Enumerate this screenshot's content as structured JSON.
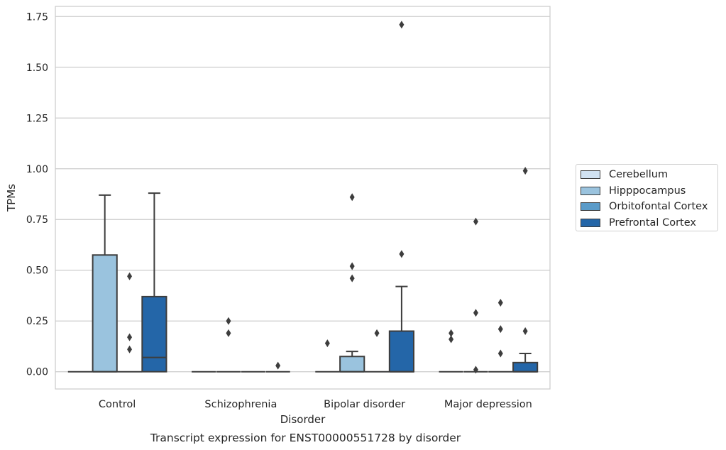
{
  "chart_data": {
    "type": "box",
    "title": "Transcript expression for ENST00000551728 by disorder",
    "xlabel": "Disorder",
    "ylabel": "TPMs",
    "ylim": [
      -0.085,
      1.8
    ],
    "yticks": [
      "0.00",
      "0.25",
      "0.50",
      "0.75",
      "1.00",
      "1.25",
      "1.50",
      "1.75"
    ],
    "grid": true,
    "legend_position": "right",
    "categories": [
      "Control",
      "Schizophrenia",
      "Bipolar disorder",
      "Major depression"
    ],
    "series": [
      {
        "name": "Cerebellum",
        "color": "#d1e2f2",
        "boxes": [
          {
            "min": 0,
            "q1": 0,
            "median": 0,
            "q3": 0,
            "max": 0,
            "outliers": []
          },
          {
            "min": 0,
            "q1": 0,
            "median": 0,
            "q3": 0,
            "max": 0,
            "outliers": []
          },
          {
            "min": 0,
            "q1": 0,
            "median": 0,
            "q3": 0,
            "max": 0,
            "outliers": [
              0.14
            ]
          },
          {
            "min": 0,
            "q1": 0,
            "median": 0,
            "q3": 0,
            "max": 0,
            "outliers": [
              0.19,
              0.16
            ]
          }
        ]
      },
      {
        "name": "Hipppocampus",
        "color": "#9ac3de",
        "boxes": [
          {
            "min": 0,
            "q1": 0,
            "median": 0,
            "q3": 0.575,
            "max": 0.87,
            "outliers": []
          },
          {
            "min": 0,
            "q1": 0,
            "median": 0,
            "q3": 0,
            "max": 0,
            "outliers": [
              0.25,
              0.19
            ]
          },
          {
            "min": 0,
            "q1": 0,
            "median": 0,
            "q3": 0.075,
            "max": 0.1,
            "outliers": [
              0.86,
              0.52,
              0.46
            ]
          },
          {
            "min": 0,
            "q1": 0,
            "median": 0,
            "q3": 0,
            "max": 0,
            "outliers": [
              0.74,
              0.29,
              0.01
            ]
          }
        ]
      },
      {
        "name": "Orbitofontal Cortex",
        "color": "#5a9bc9",
        "boxes": [
          {
            "min": 0,
            "q1": 0,
            "median": 0,
            "q3": 0,
            "max": 0,
            "outliers": [
              0.47,
              0.17,
              0.11
            ]
          },
          {
            "min": 0,
            "q1": 0,
            "median": 0,
            "q3": 0,
            "max": 0,
            "outliers": []
          },
          {
            "min": 0,
            "q1": 0,
            "median": 0,
            "q3": 0,
            "max": 0,
            "outliers": [
              0.19
            ]
          },
          {
            "min": 0,
            "q1": 0,
            "median": 0,
            "q3": 0,
            "max": 0,
            "outliers": [
              0.34,
              0.21,
              0.09
            ]
          }
        ]
      },
      {
        "name": "Prefrontal Cortex",
        "color": "#2466a8",
        "boxes": [
          {
            "min": 0,
            "q1": 0,
            "median": 0.07,
            "q3": 0.37,
            "max": 0.88,
            "outliers": []
          },
          {
            "min": 0,
            "q1": 0,
            "median": 0,
            "q3": 0,
            "max": 0,
            "outliers": [
              0.03
            ]
          },
          {
            "min": 0,
            "q1": 0,
            "median": 0,
            "q3": 0.2,
            "max": 0.42,
            "outliers": [
              1.71,
              0.58
            ]
          },
          {
            "min": 0,
            "q1": 0,
            "median": 0,
            "q3": 0.045,
            "max": 0.09,
            "outliers": [
              0.99,
              0.2
            ]
          }
        ]
      }
    ]
  }
}
